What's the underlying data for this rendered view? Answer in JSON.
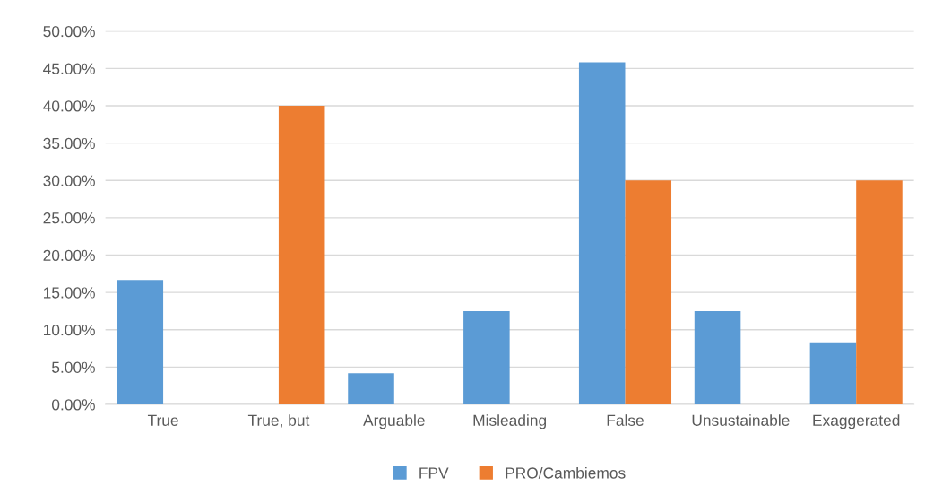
{
  "chart_data": {
    "type": "bar",
    "categories": [
      "True",
      "True, but",
      "Arguable",
      "Misleading",
      "False",
      "Unsustainable",
      "Exaggerated"
    ],
    "series": [
      {
        "name": "FPV",
        "color": "#5b9bd5",
        "values": [
          16.67,
          0,
          4.17,
          12.5,
          45.83,
          12.5,
          8.33
        ]
      },
      {
        "name": "PRO/Cambiemos",
        "color": "#ed7d31",
        "values": [
          0,
          40,
          0,
          0,
          30,
          0,
          30
        ]
      }
    ],
    "ylim": [
      0,
      50
    ],
    "yticks": [
      {
        "value": 0,
        "label": "0.00%"
      },
      {
        "value": 5,
        "label": "5.00%"
      },
      {
        "value": 10,
        "label": "10.00%"
      },
      {
        "value": 15,
        "label": "15.00%"
      },
      {
        "value": 20,
        "label": "20.00%"
      },
      {
        "value": 25,
        "label": "25.00%"
      },
      {
        "value": 30,
        "label": "30.00%"
      },
      {
        "value": 35,
        "label": "35.00%"
      },
      {
        "value": 40,
        "label": "40.00%"
      },
      {
        "value": 45,
        "label": "45.00%"
      },
      {
        "value": 50,
        "label": "50.00%"
      }
    ],
    "grid": "y",
    "legend": "bottom"
  }
}
